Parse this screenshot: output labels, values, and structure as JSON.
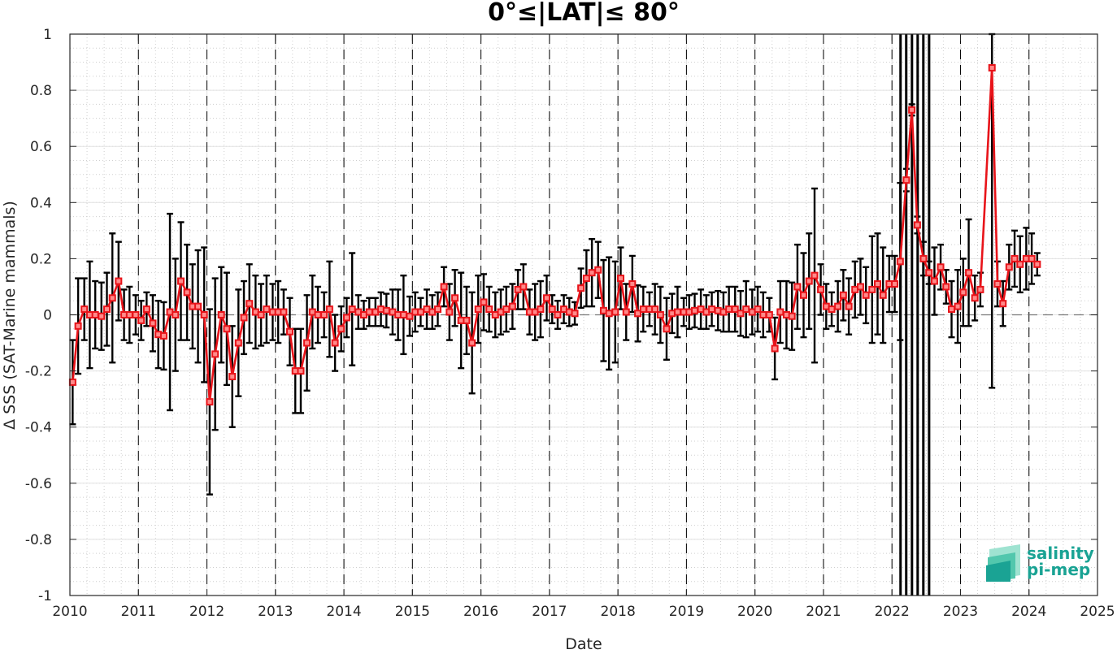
{
  "chart_data": {
    "type": "line",
    "title": "0°≤|LAT|≤ 80°",
    "xlabel": "Date",
    "ylabel": "Δ SSS (SAT-Marine mammals)",
    "xlim": [
      2010,
      2025
    ],
    "ylim": [
      -1,
      1
    ],
    "x_ticks": [
      "2010",
      "2011",
      "2012",
      "2013",
      "2014",
      "2015",
      "2016",
      "2017",
      "2018",
      "2019",
      "2020",
      "2021",
      "2022",
      "2023",
      "2024",
      "2025"
    ],
    "y_ticks": [
      "1",
      "0.8",
      "0.6",
      "0.4",
      "0.2",
      "0",
      "-0.2",
      "-0.4",
      "-0.6",
      "-0.8",
      "-1"
    ],
    "grid": true,
    "minor_grid": true,
    "zero_line": "dashed",
    "year_lines": "dashed",
    "line_color": "#e8141a",
    "errorbar_color": "#000000",
    "marker": "square",
    "full_range_bars_at": [
      2022.125,
      2022.208,
      2022.292,
      2022.375,
      2022.458,
      2022.542
    ],
    "series": [
      {
        "x": [
          2010.04,
          2010.12,
          2010.21,
          2010.29,
          2010.37,
          2010.46,
          2010.54,
          2010.62,
          2010.71,
          2010.79,
          2010.87,
          2010.96,
          2011.04,
          2011.12,
          2011.21,
          2011.29,
          2011.37,
          2011.46,
          2011.54,
          2011.62,
          2011.71,
          2011.79,
          2011.87,
          2011.96,
          2012.04,
          2012.12,
          2012.21,
          2012.29,
          2012.37,
          2012.46,
          2012.54,
          2012.62,
          2012.71,
          2012.79,
          2012.87,
          2012.96,
          2013.04,
          2013.12,
          2013.21,
          2013.29,
          2013.37,
          2013.46,
          2013.54,
          2013.62,
          2013.71,
          2013.79,
          2013.87,
          2013.96,
          2014.04,
          2014.12,
          2014.21,
          2014.29,
          2014.37,
          2014.46,
          2014.54,
          2014.62,
          2014.71,
          2014.79,
          2014.87,
          2014.96,
          2015.04,
          2015.12,
          2015.21,
          2015.29,
          2015.37,
          2015.46,
          2015.54,
          2015.62,
          2015.71,
          2015.79,
          2015.87,
          2015.96,
          2016.04,
          2016.12,
          2016.21,
          2016.29,
          2016.37,
          2016.46,
          2016.54,
          2016.62,
          2016.71,
          2016.79,
          2016.87,
          2016.96,
          2017.04,
          2017.12,
          2017.21,
          2017.29,
          2017.37,
          2017.46,
          2017.54,
          2017.62,
          2017.71,
          2017.79,
          2017.87,
          2017.96,
          2018.04,
          2018.12,
          2018.21,
          2018.29,
          2018.37,
          2018.46,
          2018.54,
          2018.62,
          2018.71,
          2018.79,
          2018.87,
          2018.96,
          2019.04,
          2019.12,
          2019.21,
          2019.29,
          2019.37,
          2019.46,
          2019.54,
          2019.62,
          2019.71,
          2019.79,
          2019.87,
          2019.96,
          2020.04,
          2020.12,
          2020.21,
          2020.29,
          2020.37,
          2020.46,
          2020.54,
          2020.62,
          2020.71,
          2020.79,
          2020.87,
          2020.96,
          2021.04,
          2021.12,
          2021.21,
          2021.29,
          2021.37,
          2021.46,
          2021.54,
          2021.62,
          2021.71,
          2021.79,
          2021.87,
          2021.96,
          2022.04,
          2022.12,
          2022.21,
          2022.29,
          2022.37,
          2022.46,
          2022.54,
          2022.62,
          2022.71,
          2022.79,
          2022.87,
          2022.96,
          2023.04,
          2023.12,
          2023.21,
          2023.29,
          2023.46,
          2023.54,
          2023.62,
          2023.71,
          2023.79,
          2023.87,
          2023.96,
          2024.04,
          2024.12
        ],
        "y": [
          -0.24,
          -0.04,
          0.02,
          0.0,
          0.0,
          -0.005,
          0.02,
          0.06,
          0.12,
          0.0,
          0.0,
          0.0,
          -0.02,
          0.02,
          -0.03,
          -0.07,
          -0.075,
          0.01,
          0.0,
          0.12,
          0.08,
          0.03,
          0.03,
          0.0,
          -0.31,
          -0.14,
          0.0,
          -0.05,
          -0.22,
          -0.1,
          -0.01,
          0.04,
          0.01,
          0.0,
          0.02,
          0.01,
          0.01,
          0.01,
          -0.06,
          -0.2,
          -0.2,
          -0.1,
          0.01,
          0.0,
          0.0,
          0.02,
          -0.1,
          -0.05,
          -0.01,
          0.02,
          0.01,
          0.0,
          0.01,
          0.01,
          0.02,
          0.015,
          0.01,
          0.0,
          0.0,
          -0.005,
          0.01,
          0.01,
          0.02,
          0.01,
          0.02,
          0.1,
          0.01,
          0.06,
          -0.02,
          -0.02,
          -0.1,
          0.02,
          0.045,
          0.02,
          0.0,
          0.01,
          0.02,
          0.03,
          0.09,
          0.1,
          0.01,
          0.01,
          0.02,
          0.06,
          0.02,
          0.0,
          0.02,
          0.01,
          0.005,
          0.095,
          0.13,
          0.15,
          0.16,
          0.015,
          0.005,
          0.01,
          0.13,
          0.01,
          0.11,
          0.005,
          0.02,
          0.02,
          0.02,
          0.0,
          -0.05,
          0.005,
          0.01,
          0.01,
          0.01,
          0.015,
          0.02,
          0.01,
          0.02,
          0.015,
          0.01,
          0.02,
          0.02,
          0.005,
          0.02,
          0.01,
          0.02,
          0.0,
          0.0,
          -0.12,
          0.01,
          0.0,
          -0.005,
          0.1,
          0.07,
          0.12,
          0.14,
          0.09,
          0.03,
          0.02,
          0.03,
          0.07,
          0.03,
          0.09,
          0.1,
          0.07,
          0.09,
          0.11,
          0.07,
          0.11,
          0.11,
          0.19,
          0.48,
          0.73,
          0.32,
          0.2,
          0.15,
          0.12,
          0.17,
          0.1,
          0.02,
          0.03,
          0.08,
          0.15,
          0.06,
          0.09,
          0.88,
          0.11,
          0.04,
          0.17,
          0.2,
          0.18,
          0.2,
          0.2,
          0.18
        ],
        "error": [
          0.15,
          0.17,
          0.11,
          0.19,
          0.12,
          0.12,
          0.13,
          0.23,
          0.14,
          0.09,
          0.1,
          0.07,
          0.07,
          0.06,
          0.1,
          0.12,
          0.12,
          0.35,
          0.2,
          0.21,
          0.17,
          0.15,
          0.2,
          0.24,
          0.33,
          0.27,
          0.17,
          0.2,
          0.18,
          0.19,
          0.13,
          0.14,
          0.13,
          0.11,
          0.12,
          0.1,
          0.11,
          0.08,
          0.12,
          0.15,
          0.15,
          0.17,
          0.13,
          0.1,
          0.08,
          0.17,
          0.1,
          0.08,
          0.07,
          0.2,
          0.06,
          0.05,
          0.05,
          0.05,
          0.06,
          0.06,
          0.08,
          0.09,
          0.14,
          0.07,
          0.07,
          0.05,
          0.07,
          0.06,
          0.06,
          0.07,
          0.1,
          0.1,
          0.17,
          0.12,
          0.18,
          0.12,
          0.1,
          0.08,
          0.08,
          0.08,
          0.08,
          0.08,
          0.07,
          0.08,
          0.08,
          0.1,
          0.1,
          0.08,
          0.05,
          0.05,
          0.05,
          0.05,
          0.04,
          0.07,
          0.1,
          0.12,
          0.1,
          0.18,
          0.2,
          0.18,
          0.11,
          0.1,
          0.1,
          0.1,
          0.08,
          0.06,
          0.09,
          0.1,
          0.11,
          0.07,
          0.09,
          0.05,
          0.06,
          0.06,
          0.07,
          0.06,
          0.06,
          0.07,
          0.07,
          0.08,
          0.08,
          0.08,
          0.1,
          0.08,
          0.08,
          0.08,
          0.06,
          0.11,
          0.11,
          0.12,
          0.12,
          0.15,
          0.15,
          0.17,
          0.31,
          0.09,
          0.08,
          0.06,
          0.09,
          0.09,
          0.1,
          0.1,
          0.1,
          0.1,
          0.19,
          0.18,
          0.17,
          0.1,
          0.1,
          0.28,
          0.04,
          0.02,
          0.03,
          0.06,
          0.04,
          0.12,
          0.08,
          0.06,
          0.1,
          0.13,
          0.12,
          0.19,
          0.08,
          0.06,
          1.14,
          0.08,
          0.08,
          0.08,
          0.1,
          0.1,
          0.11,
          0.09,
          0.04
        ]
      }
    ],
    "logo": {
      "line1": "salinity",
      "line2": "pi-mep"
    }
  }
}
